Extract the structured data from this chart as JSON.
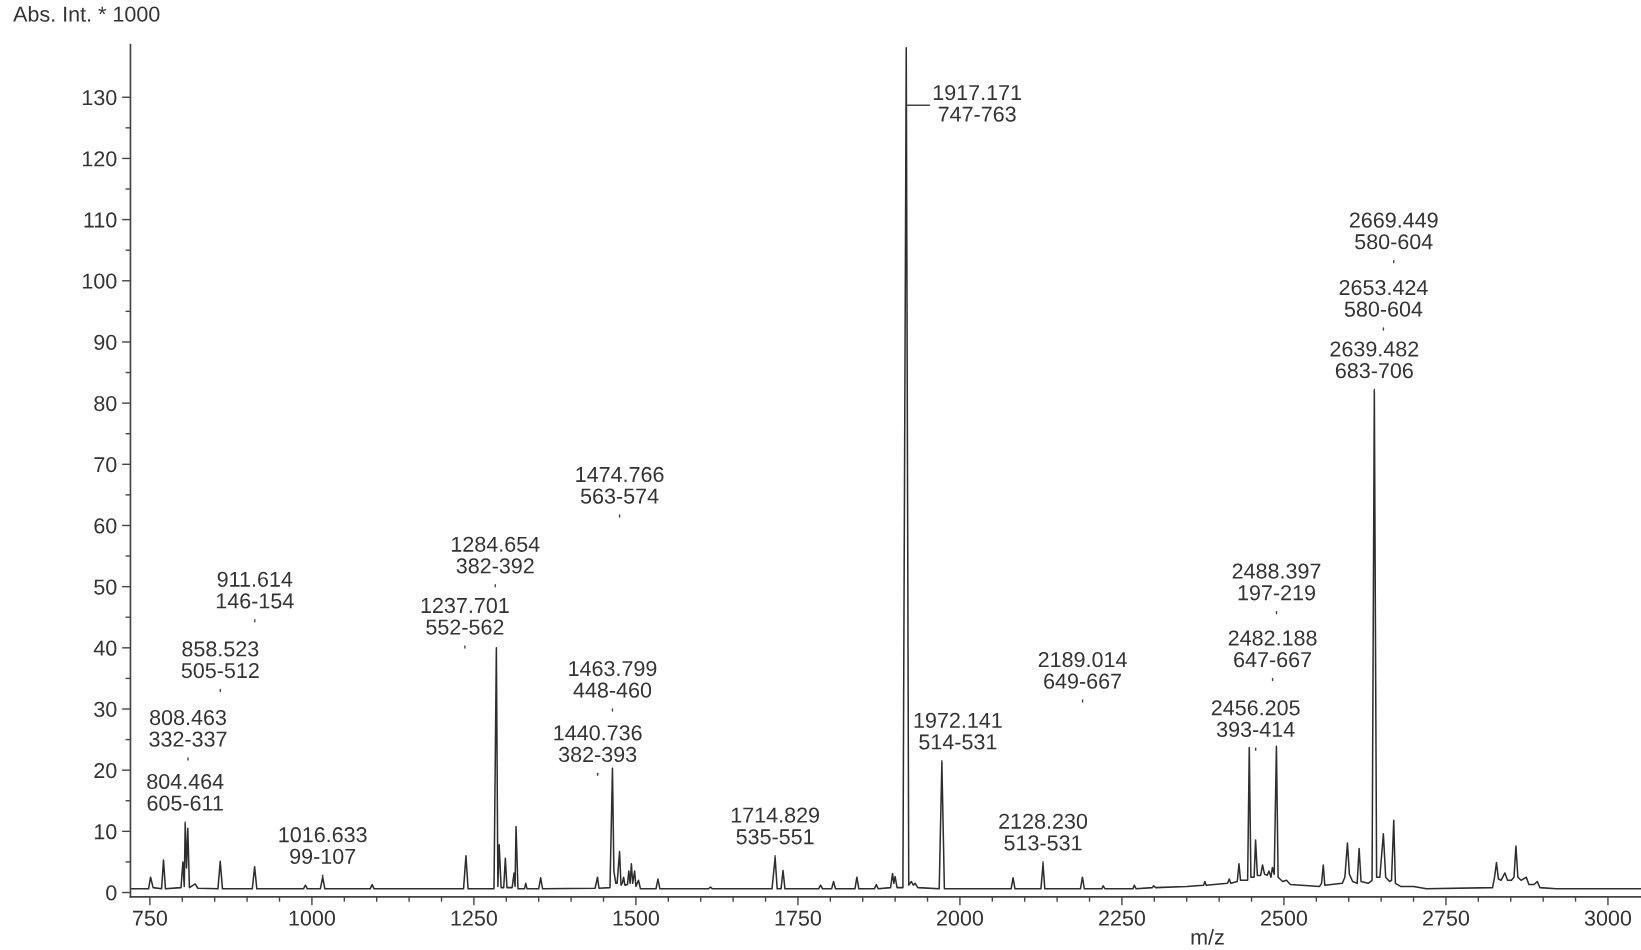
{
  "chart_data": {
    "type": "line",
    "xlabel": "m/z",
    "ylabel": "Abs. Int. * 1000",
    "xlim": [
      720,
      3051
    ],
    "ylim": [
      -0.7,
      138.6
    ],
    "xticks": [
      750,
      {
        "value": 800,
        "label": null
      },
      {
        "value": 850,
        "label": null
      },
      {
        "value": 900,
        "label": null
      },
      {
        "value": 950,
        "label": null
      },
      1000,
      {
        "value": 1050,
        "label": null
      },
      {
        "value": 1100,
        "label": null
      },
      {
        "value": 1150,
        "label": null
      },
      {
        "value": 1200,
        "label": null
      },
      1250,
      {
        "value": 1300,
        "label": null
      },
      {
        "value": 1350,
        "label": null
      },
      {
        "value": 1400,
        "label": null
      },
      {
        "value": 1450,
        "label": null
      },
      1500,
      {
        "value": 1550,
        "label": null
      },
      {
        "value": 1600,
        "label": null
      },
      {
        "value": 1650,
        "label": null
      },
      {
        "value": 1700,
        "label": null
      },
      1750,
      {
        "value": 1800,
        "label": null
      },
      {
        "value": 1850,
        "label": null
      },
      {
        "value": 1900,
        "label": null
      },
      {
        "value": 1950,
        "label": null
      },
      2000,
      {
        "value": 2050,
        "label": null
      },
      {
        "value": 2100,
        "label": null
      },
      {
        "value": 2150,
        "label": null
      },
      {
        "value": 2200,
        "label": null
      },
      2250,
      {
        "value": 2300,
        "label": null
      },
      {
        "value": 2350,
        "label": null
      },
      {
        "value": 2400,
        "label": null
      },
      {
        "value": 2450,
        "label": null
      },
      2500,
      {
        "value": 2550,
        "label": null
      },
      {
        "value": 2600,
        "label": null
      },
      {
        "value": 2650,
        "label": null
      },
      {
        "value": 2700,
        "label": null
      },
      2750,
      {
        "value": 2800,
        "label": null
      },
      {
        "value": 2850,
        "label": null
      },
      {
        "value": 2900,
        "label": null
      },
      {
        "value": 2950,
        "label": null
      },
      3000
    ],
    "yticks": [
      0,
      {
        "value": 5,
        "label": null
      },
      10,
      {
        "value": 15,
        "label": null
      },
      20,
      {
        "value": 25,
        "label": null
      },
      30,
      {
        "value": 35,
        "label": null
      },
      40,
      {
        "value": 45,
        "label": null
      },
      50,
      {
        "value": 55,
        "label": null
      },
      60,
      {
        "value": 65,
        "label": null
      },
      70,
      {
        "value": 75,
        "label": null
      },
      80,
      {
        "value": 85,
        "label": null
      },
      90,
      {
        "value": 95,
        "label": null
      },
      100,
      {
        "value": 105,
        "label": null
      },
      110,
      {
        "value": 115,
        "label": null
      },
      120,
      {
        "value": 125,
        "label": null
      },
      130
    ],
    "series": [
      {
        "color": "#2e2e2e",
        "x": [
          722,
          748,
          751,
          755,
          768,
          771,
          774,
          798,
          801,
          803,
          804.464,
          806.5,
          808.463,
          811,
          820,
          824,
          855,
          858.523,
          862,
          908,
          911.614,
          915,
          987,
          990,
          993,
          1013,
          1016.633,
          1020,
          1090,
          1093,
          1096,
          1234,
          1237.701,
          1241,
          1281,
          1284.654,
          1287,
          1289,
          1292,
          1296,
          1298.5,
          1301,
          1309,
          1312,
          1313.5,
          1315,
          1318,
          1328,
          1330,
          1332,
          1350,
          1353,
          1356,
          1437,
          1440.736,
          1443,
          1460,
          1463.799,
          1466,
          1469,
          1471,
          1474.766,
          1477,
          1479,
          1481,
          1483,
          1487,
          1489,
          1491,
          1493,
          1495,
          1498,
          1500,
          1504,
          1507,
          1531,
          1534,
          1537,
          1612,
          1615,
          1618,
          1710,
          1714.829,
          1718,
          1724,
          1727,
          1730,
          1782,
          1785,
          1788,
          1802,
          1805,
          1808,
          1838,
          1841,
          1844,
          1868,
          1871,
          1874,
          1893,
          1896,
          1898,
          1900,
          1903,
          1912,
          1917.171,
          1921,
          1925,
          1928,
          1931,
          1935,
          1968,
          1972.141,
          1976,
          2079,
          2082,
          2085,
          2125,
          2128.23,
          2131,
          2186,
          2189.014,
          2192,
          2219,
          2221,
          2224,
          2267,
          2269,
          2272,
          2297,
          2299,
          2302,
          2350,
          2376,
          2378,
          2380,
          2413,
          2415.6,
          2418,
          2428,
          2430.6,
          2433,
          2444,
          2446.5,
          2449,
          2454,
          2456.205,
          2459,
          2464,
          2467,
          2470,
          2474,
          2477,
          2480,
          2482.188,
          2485,
          2488.397,
          2491,
          2498,
          2504,
          2510,
          2555,
          2558,
          2560.7,
          2563,
          2590,
          2594,
          2598,
          2601,
          2606,
          2613,
          2616,
          2619,
          2630,
          2636,
          2639.482,
          2643,
          2648,
          2653.424,
          2657,
          2663,
          2666,
          2669.449,
          2672,
          2680,
          2700,
          2720,
          2822,
          2825,
          2828,
          2831,
          2835,
          2841,
          2845,
          2851,
          2855,
          2858,
          2861,
          2866,
          2874,
          2878,
          2886,
          2891,
          2895,
          2920,
          3050
        ],
        "values": [
          0.6,
          0.6,
          2.5,
          0.8,
          0.6,
          5.3,
          0.6,
          0.8,
          5.0,
          1.0,
          11.2,
          4.0,
          10.5,
          0.8,
          1.4,
          0.7,
          0.6,
          5.1,
          0.6,
          0.6,
          4.2,
          0.6,
          0.6,
          1.2,
          0.6,
          0.6,
          2.5,
          0.6,
          0.6,
          1.3,
          0.6,
          0.6,
          6.0,
          0.6,
          0.6,
          40.0,
          1.0,
          7.8,
          0.8,
          0.8,
          5.6,
          0.8,
          0.8,
          3.2,
          1.0,
          10.8,
          0.6,
          0.6,
          1.5,
          0.6,
          0.6,
          2.4,
          0.6,
          0.7,
          2.5,
          0.7,
          0.8,
          20.3,
          3.5,
          1.5,
          1.5,
          6.7,
          1.2,
          1.5,
          2.5,
          1.2,
          1.3,
          3.5,
          1.5,
          4.7,
          1.5,
          3.5,
          1.0,
          2.0,
          0.6,
          0.6,
          2.2,
          0.6,
          0.6,
          0.9,
          0.6,
          0.6,
          5.7,
          0.6,
          0.6,
          3.6,
          0.6,
          0.6,
          1.2,
          0.6,
          0.6,
          1.8,
          0.6,
          0.6,
          2.5,
          0.6,
          0.6,
          1.3,
          0.6,
          0.8,
          3.1,
          1.5,
          2.6,
          0.8,
          0.8,
          138.1,
          1.2,
          1.8,
          1.2,
          1.5,
          0.8,
          0.6,
          21.2,
          0.6,
          0.6,
          2.4,
          0.6,
          0.6,
          4.7,
          0.6,
          0.6,
          2.5,
          0.6,
          0.6,
          1.1,
          0.6,
          0.6,
          1.2,
          0.6,
          0.8,
          1.1,
          0.8,
          1.0,
          1.2,
          1.8,
          1.2,
          1.5,
          2.2,
          1.5,
          1.8,
          4.7,
          2.0,
          2.0,
          23.7,
          2.5,
          2.5,
          8.6,
          2.8,
          2.8,
          4.5,
          3.0,
          2.8,
          3.5,
          2.5,
          4.1,
          3.0,
          23.9,
          2.5,
          1.8,
          2.0,
          1.3,
          1.0,
          1.5,
          4.5,
          1.2,
          1.5,
          2.5,
          8.1,
          3.0,
          1.8,
          1.5,
          7.2,
          1.8,
          1.5,
          2.0,
          81.9,
          2.5,
          2.5,
          9.6,
          2.5,
          1.8,
          2.0,
          11.8,
          1.5,
          1.0,
          1.0,
          0.6,
          0.8,
          2.5,
          4.9,
          2.2,
          2.0,
          3.2,
          2.0,
          2.0,
          2.5,
          7.6,
          2.5,
          2.0,
          2.5,
          1.3,
          1.3,
          1.8,
          0.8,
          0.6,
          0.6
        ]
      }
    ],
    "annotations": [
      {
        "text": "804.464\n605-611",
        "x": 804.464,
        "y": 11.2
      },
      "808.463\n332-337",
      "858.523\n505-512",
      "911.614\n146-154",
      {
        "text": "1016.633\n99-107",
        "x": 1016.633,
        "y": 2.5
      },
      "1237.701\n552-562",
      "1284.654\n382-392",
      "1440.736\n382-393",
      "1463.799\n448-460",
      "1474.766\n563-574",
      {
        "text": "1714.829\n535-551",
        "x": 1714.829,
        "y": 5.7
      },
      {
        "text": "1917.171\n747-763",
        "x": 1917.171,
        "y": 128.7
      },
      {
        "text": "1972.141\n514-531",
        "x": 1972.141,
        "y": 21.2
      },
      {
        "text": "2128.230\n513-531",
        "x": 2128.23,
        "y": 4.7
      },
      "2189.014\n649-667",
      "2456.205\n393-414",
      "2482.188\n647-667",
      "2488.397\n197-219",
      {
        "text": "2639.482\n683-706",
        "x": 2639.482,
        "y": 81.9
      },
      "2653.424\n580-604",
      "2669.449\n580-604"
    ]
  }
}
